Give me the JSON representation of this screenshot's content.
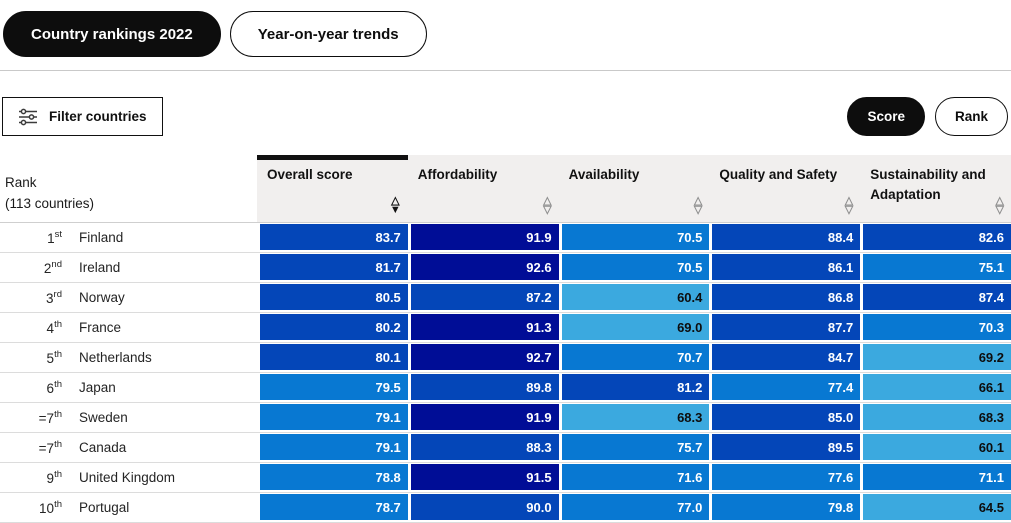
{
  "tabs": [
    {
      "label": "Country rankings 2022",
      "active": true
    },
    {
      "label": "Year-on-year trends",
      "active": false
    }
  ],
  "toolbar": {
    "filter_label": "Filter countries",
    "filter_icon": "sliders-icon",
    "view_toggle": [
      {
        "label": "Score",
        "active": true
      },
      {
        "label": "Rank",
        "active": false
      }
    ]
  },
  "table": {
    "rank_header": {
      "line1": "Rank",
      "line2": "(113 countries)"
    },
    "columns": [
      {
        "label": "Overall score",
        "active": true,
        "sort": "desc"
      },
      {
        "label": "Affordability",
        "active": false,
        "sort": "none"
      },
      {
        "label": "Availability",
        "active": false,
        "sort": "none"
      },
      {
        "label": "Quality and Safety",
        "active": false,
        "sort": "none"
      },
      {
        "label": "Sustainability and Adaptation",
        "active": false,
        "sort": "none"
      }
    ],
    "rows": [
      {
        "rank": "1",
        "ordinal": "st",
        "country": "Finland",
        "values": [
          "83.7",
          "91.9",
          "70.5",
          "88.4",
          "82.6"
        ]
      },
      {
        "rank": "2",
        "ordinal": "nd",
        "country": "Ireland",
        "values": [
          "81.7",
          "92.6",
          "70.5",
          "86.1",
          "75.1"
        ]
      },
      {
        "rank": "3",
        "ordinal": "rd",
        "country": "Norway",
        "values": [
          "80.5",
          "87.2",
          "60.4",
          "86.8",
          "87.4"
        ]
      },
      {
        "rank": "4",
        "ordinal": "th",
        "country": "France",
        "values": [
          "80.2",
          "91.3",
          "69.0",
          "87.7",
          "70.3"
        ]
      },
      {
        "rank": "5",
        "ordinal": "th",
        "country": "Netherlands",
        "values": [
          "80.1",
          "92.7",
          "70.7",
          "84.7",
          "69.2"
        ]
      },
      {
        "rank": "6",
        "ordinal": "th",
        "country": "Japan",
        "values": [
          "79.5",
          "89.8",
          "81.2",
          "77.4",
          "66.1"
        ]
      },
      {
        "rank": "=7",
        "ordinal": "th",
        "country": "Sweden",
        "values": [
          "79.1",
          "91.9",
          "68.3",
          "85.0",
          "68.3"
        ]
      },
      {
        "rank": "=7",
        "ordinal": "th",
        "country": "Canada",
        "values": [
          "79.1",
          "88.3",
          "75.7",
          "89.5",
          "60.1"
        ]
      },
      {
        "rank": "9",
        "ordinal": "th",
        "country": "United Kingdom",
        "values": [
          "78.8",
          "91.5",
          "71.6",
          "77.6",
          "71.1"
        ]
      },
      {
        "rank": "10",
        "ordinal": "th",
        "country": "Portugal",
        "values": [
          "78.7",
          "90.0",
          "77.0",
          "79.8",
          "64.5"
        ]
      }
    ],
    "color_scale": [
      {
        "min": 91,
        "bg": "#000d96",
        "text": "#ffffff"
      },
      {
        "min": 80,
        "bg": "#0446b8",
        "text": "#ffffff"
      },
      {
        "min": 70,
        "bg": "#0878d2",
        "text": "#ffffff"
      },
      {
        "min": 0,
        "bg": "#3ba9df",
        "text": "#0d0d0d"
      }
    ],
    "sort_glyphs": {
      "up_outline": "△",
      "down_outline": "▽",
      "down_filled": "▼"
    }
  }
}
